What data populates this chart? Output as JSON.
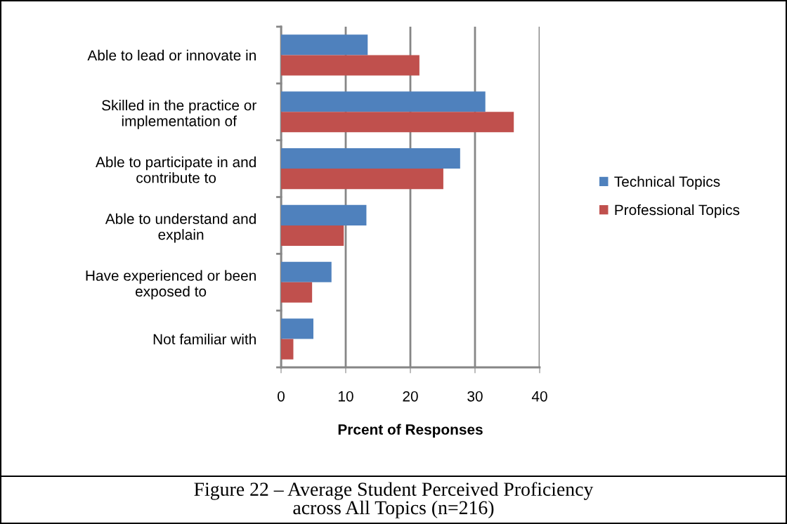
{
  "chart_data": {
    "type": "bar",
    "orientation": "horizontal",
    "xlabel": "Prcent of Responses",
    "categories": [
      "Able to lead or innovate in",
      "Skilled in the practice or\nimplementation of",
      "Able to participate in and\ncontribute to",
      "Able to understand and\nexplain",
      "Have experienced or been\nexposed to",
      "Not familiar with"
    ],
    "series": [
      {
        "name": "Technical Topics",
        "color": "#4f81bd",
        "values": [
          13.4,
          31.6,
          27.7,
          13.2,
          7.8,
          5.0
        ]
      },
      {
        "name": "Professional Topics",
        "color": "#c0504d",
        "values": [
          21.4,
          36.0,
          25.1,
          9.7,
          4.8,
          1.9
        ]
      }
    ],
    "xlim": [
      0,
      40
    ],
    "xticks": [
      0,
      10,
      20,
      30,
      40
    ],
    "grid": "x",
    "legend": "right",
    "annotations": [
      "Figure 22 – Average Student Perceived Proficiency\nacross All Topics (n=216)"
    ]
  }
}
